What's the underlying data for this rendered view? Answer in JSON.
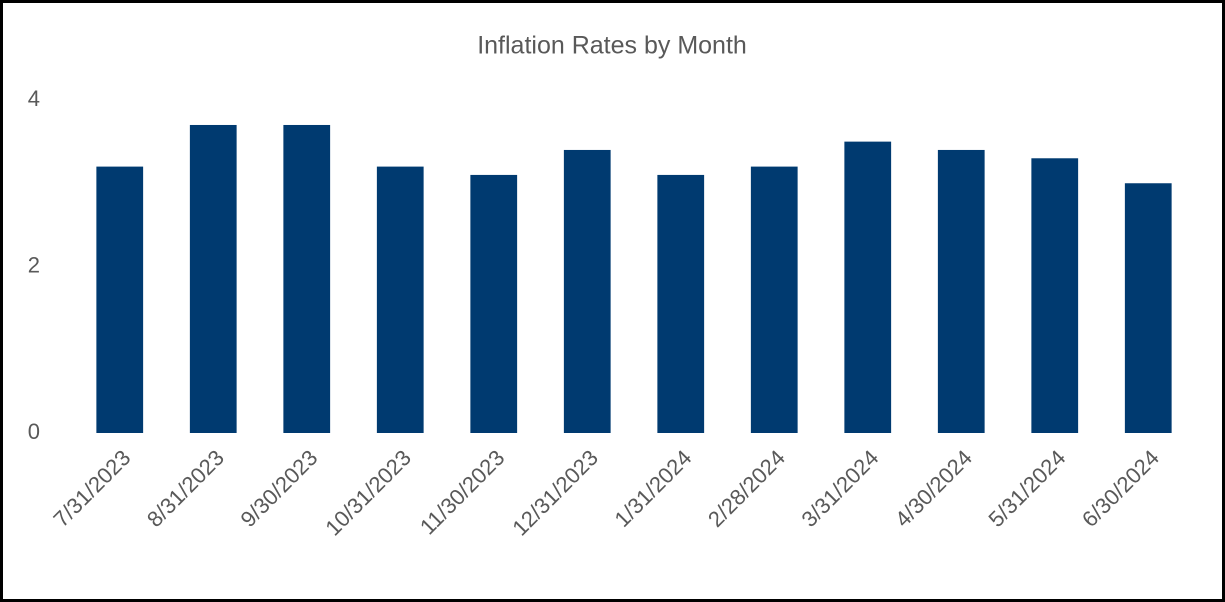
{
  "chart_data": {
    "type": "bar",
    "title": "Inflation Rates by Month",
    "categories": [
      "7/31/2023",
      "8/31/2023",
      "9/30/2023",
      "10/31/2023",
      "11/30/2023",
      "12/31/2023",
      "1/31/2024",
      "2/28/2024",
      "3/31/2024",
      "4/30/2024",
      "5/31/2024",
      "6/30/2024"
    ],
    "values": [
      3.2,
      3.7,
      3.7,
      3.2,
      3.1,
      3.4,
      3.1,
      3.2,
      3.5,
      3.4,
      3.3,
      3.0
    ],
    "color": "#003a70",
    "ylim": [
      0,
      4
    ],
    "yticks": [
      0,
      2,
      4
    ],
    "grid": false
  }
}
